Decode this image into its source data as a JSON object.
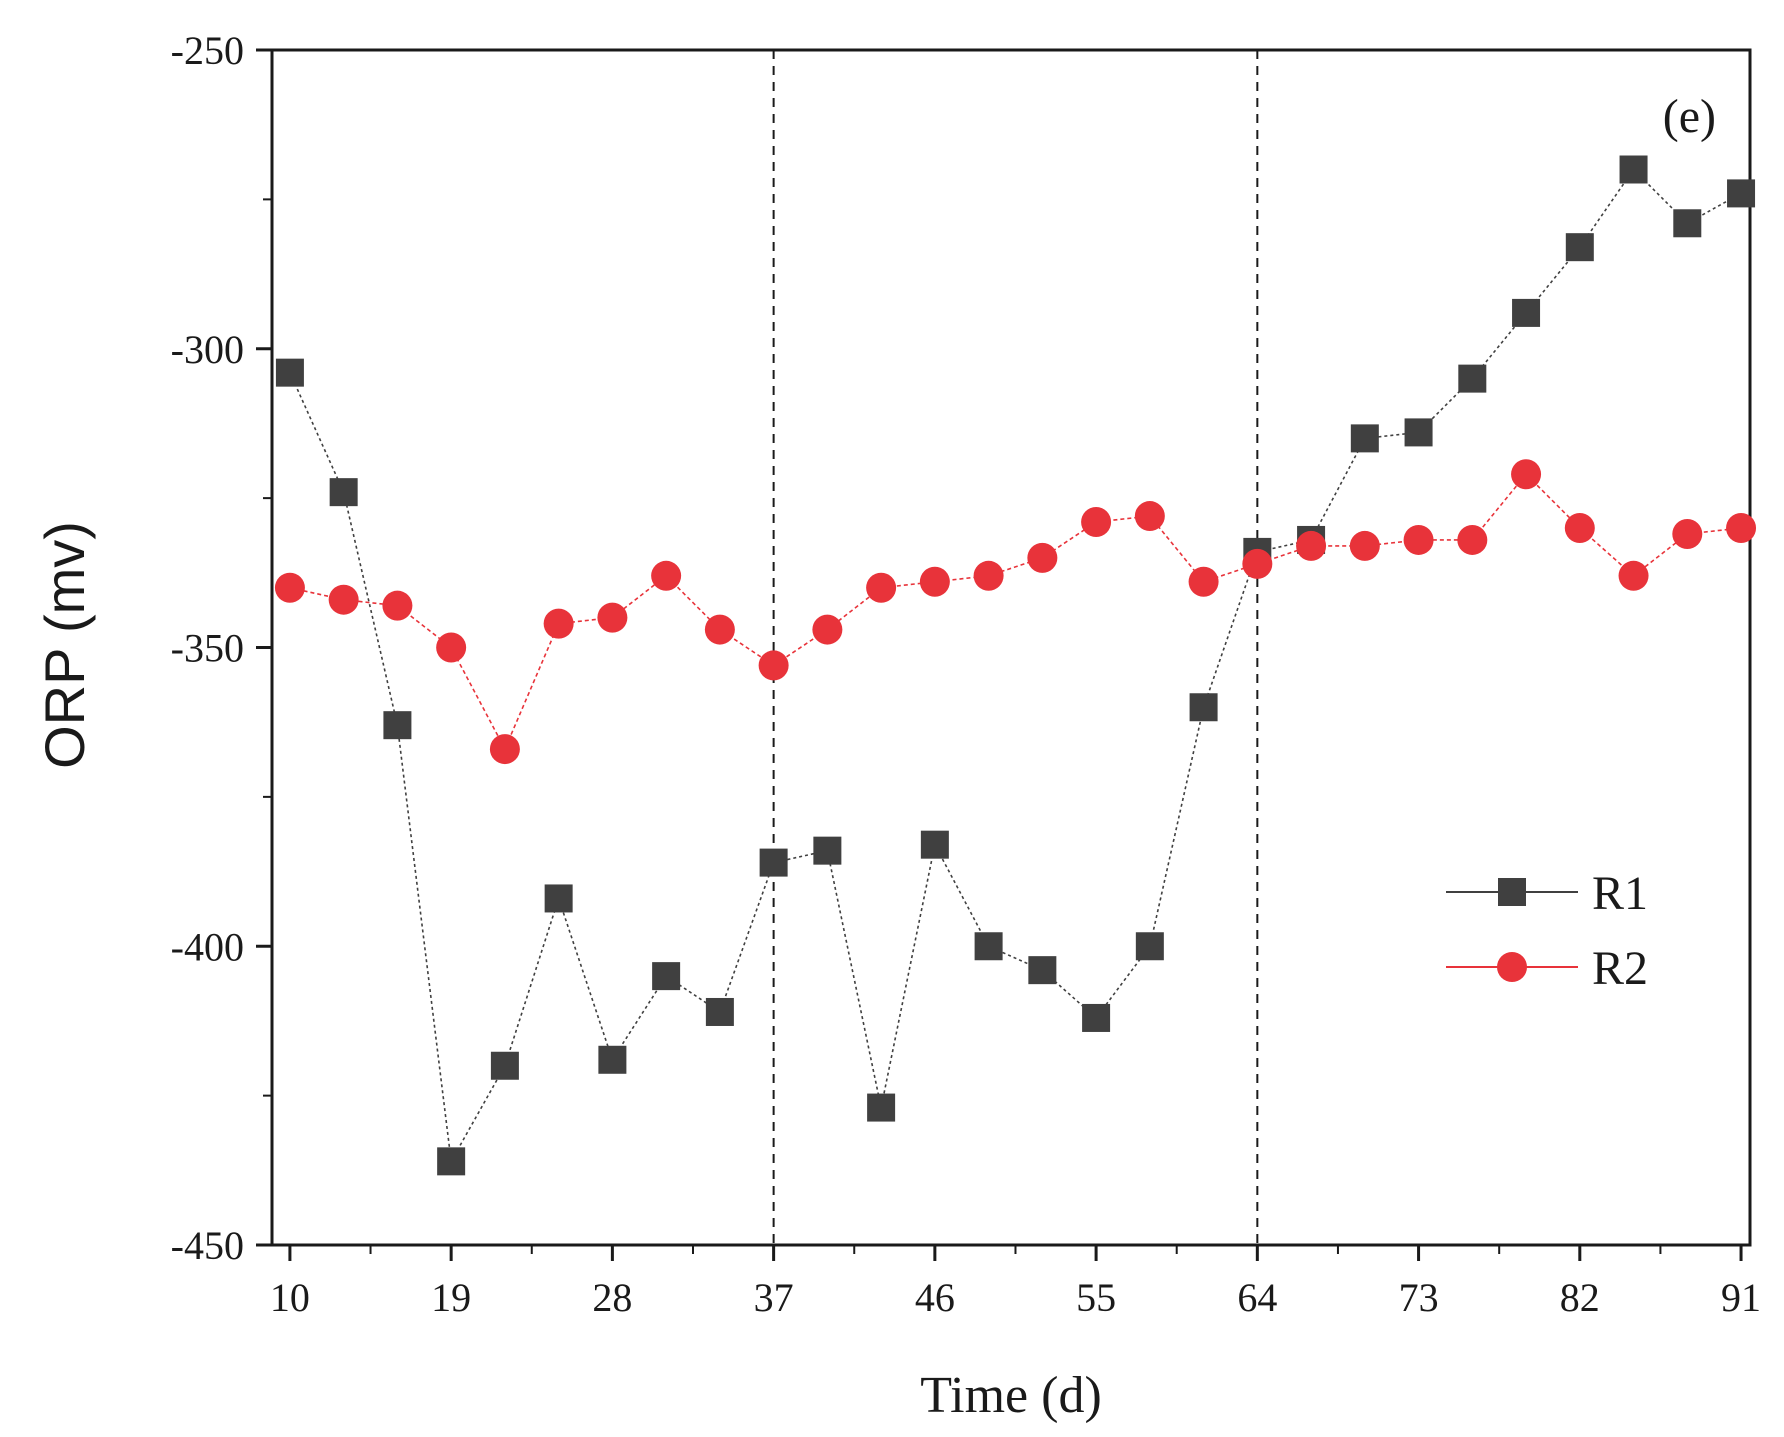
{
  "chart_data": {
    "type": "line",
    "panel_label": "(e)",
    "xlabel": "Time (d)",
    "ylabel": "ORP (mv)",
    "xlim": [
      9,
      91.5
    ],
    "ylim": [
      -450,
      -250
    ],
    "xticks": [
      "10",
      "19",
      "28",
      "37",
      "46",
      "55",
      "64",
      "73",
      "82",
      "91"
    ],
    "yticks": [
      "-250",
      "-300",
      "-350",
      "-400",
      "-450"
    ],
    "vertical_dashed_lines": [
      37,
      64
    ],
    "legend_position": "right",
    "x": [
      10,
      13,
      16,
      19,
      22,
      25,
      28,
      31,
      34,
      37,
      40,
      43,
      46,
      49,
      52,
      55,
      58,
      61,
      64,
      67,
      70,
      73,
      76,
      79,
      82,
      85,
      88,
      91
    ],
    "series": [
      {
        "name": "R1",
        "color": "#404040",
        "marker": "square",
        "values": [
          -304,
          -324,
          -363,
          -436,
          -420,
          -392,
          -419,
          -405,
          -411,
          -386,
          -384,
          -427,
          -383,
          -400,
          -404,
          -412,
          -400,
          -360,
          -334,
          -332,
          -315,
          -314,
          -305,
          -294,
          -283,
          -270,
          -279,
          -274
        ]
      },
      {
        "name": "R2",
        "color": "#e8333a",
        "marker": "circle",
        "values": [
          -340,
          -342,
          -343,
          -350,
          -367,
          -346,
          -345,
          -338,
          -347,
          -353,
          -347,
          -340,
          -339,
          -338,
          -335,
          -329,
          -328,
          -339,
          -336,
          -333,
          -333,
          -332,
          -332,
          -321,
          -330,
          -338,
          -331,
          -330
        ]
      }
    ]
  }
}
